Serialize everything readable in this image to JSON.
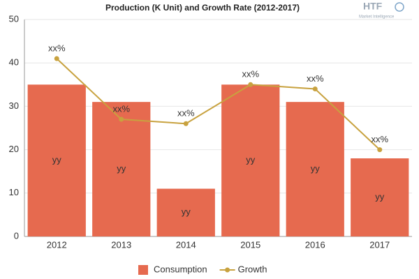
{
  "chart_data": {
    "type": "bar",
    "title": "Production (K Unit) and Growth Rate (2012-2017)",
    "logo": {
      "text": "HTF",
      "subtext": "Market Intelligence"
    },
    "categories": [
      "2012",
      "2013",
      "2014",
      "2015",
      "2016",
      "2017"
    ],
    "series": [
      {
        "name": "Consumption",
        "type": "bar",
        "color": "#e66a4f",
        "values": [
          35,
          31,
          11,
          35,
          31,
          18
        ],
        "value_labels": [
          "yy",
          "yy",
          "yy",
          "yy",
          "yy",
          "yy"
        ]
      },
      {
        "name": "Growth",
        "type": "line",
        "color": "#c8a23f",
        "values": [
          41,
          27,
          26,
          35,
          34,
          20
        ],
        "value_labels": [
          "xx%",
          "xx%",
          "xx%",
          "xx%",
          "xx%",
          "xx%"
        ]
      }
    ],
    "ylim": [
      0,
      50
    ],
    "yticks": [
      0,
      10,
      20,
      30,
      40,
      50
    ],
    "grid": true,
    "legend": "bottom"
  }
}
